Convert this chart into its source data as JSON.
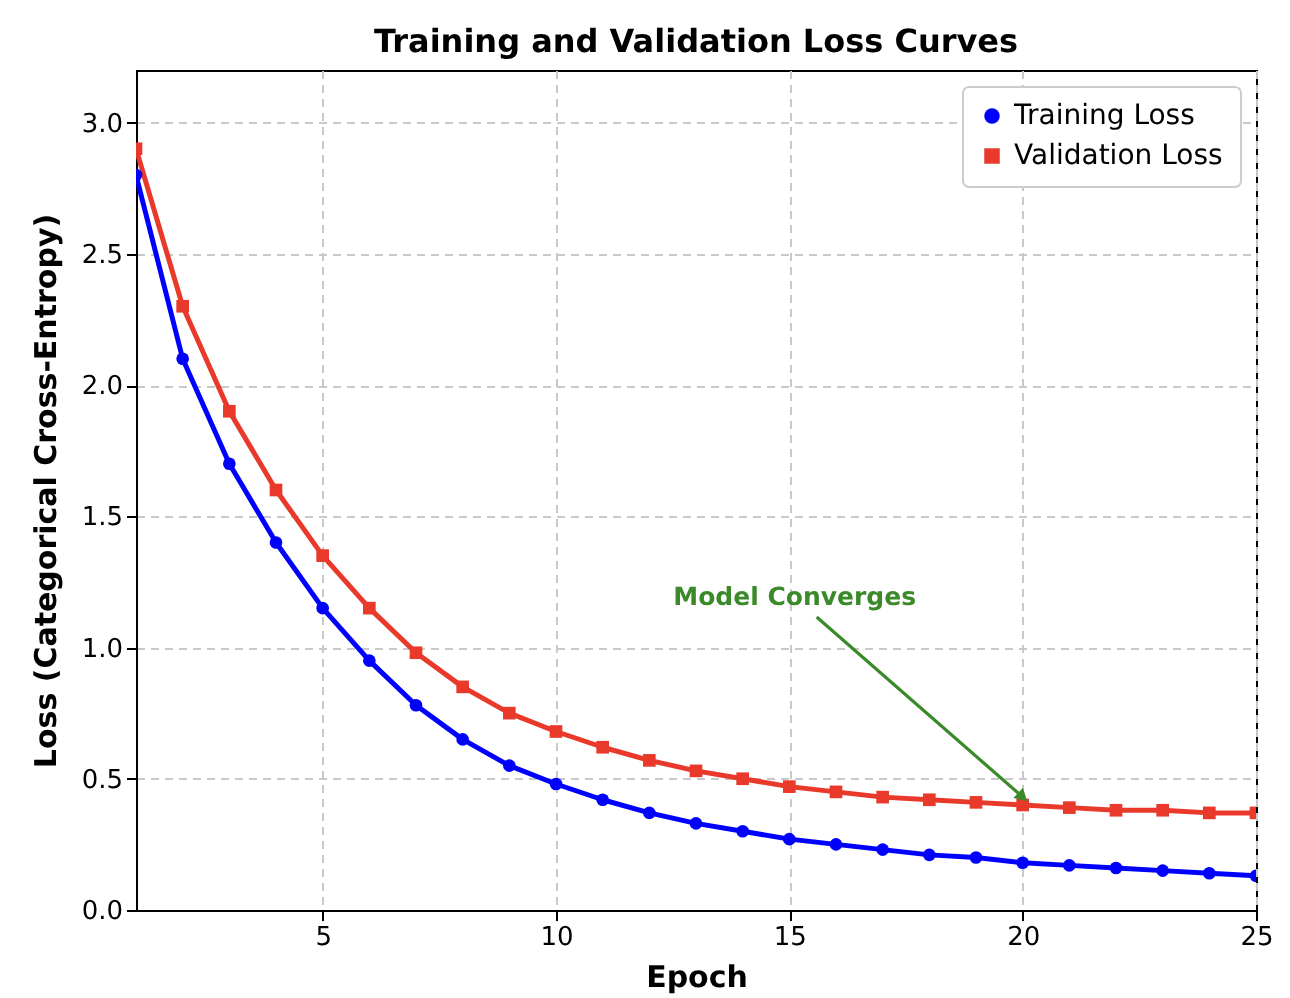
{
  "chart_data": {
    "type": "line",
    "title": "Training and Validation Loss Curves",
    "xlabel": "Epoch",
    "ylabel": "Loss (Categorical Cross-Entropy)",
    "x": [
      1,
      2,
      3,
      4,
      5,
      6,
      7,
      8,
      9,
      10,
      11,
      12,
      13,
      14,
      15,
      16,
      17,
      18,
      19,
      20,
      21,
      22,
      23,
      24,
      25
    ],
    "series": [
      {
        "name": "Training Loss",
        "color": "#0000ff",
        "marker": "circle",
        "values": [
          2.8,
          2.1,
          1.7,
          1.4,
          1.15,
          0.95,
          0.78,
          0.65,
          0.55,
          0.48,
          0.42,
          0.37,
          0.33,
          0.3,
          0.27,
          0.25,
          0.23,
          0.21,
          0.2,
          0.18,
          0.17,
          0.16,
          0.15,
          0.14,
          0.13
        ]
      },
      {
        "name": "Validation Loss",
        "color": "#e8392a",
        "marker": "square",
        "values": [
          2.9,
          2.3,
          1.9,
          1.6,
          1.35,
          1.15,
          0.98,
          0.85,
          0.75,
          0.68,
          0.62,
          0.57,
          0.53,
          0.5,
          0.47,
          0.45,
          0.43,
          0.42,
          0.41,
          0.4,
          0.39,
          0.38,
          0.38,
          0.37,
          0.37
        ]
      }
    ],
    "annotations": [
      {
        "text": "Model Converges",
        "x": 20,
        "y": 0.4
      }
    ],
    "xlim": [
      1,
      25
    ],
    "xticks": [
      5,
      10,
      15,
      20,
      25
    ],
    "ylim": [
      0,
      3.2
    ],
    "yticks": [
      {
        "value": 0,
        "label": "0.0"
      },
      0.5,
      {
        "value": 1,
        "label": "1.0"
      },
      1.5,
      {
        "value": 2,
        "label": "2.0"
      },
      2.5,
      {
        "value": 3,
        "label": "3.0"
      }
    ],
    "grid": true,
    "legend": "top right",
    "line_style": "solid"
  }
}
